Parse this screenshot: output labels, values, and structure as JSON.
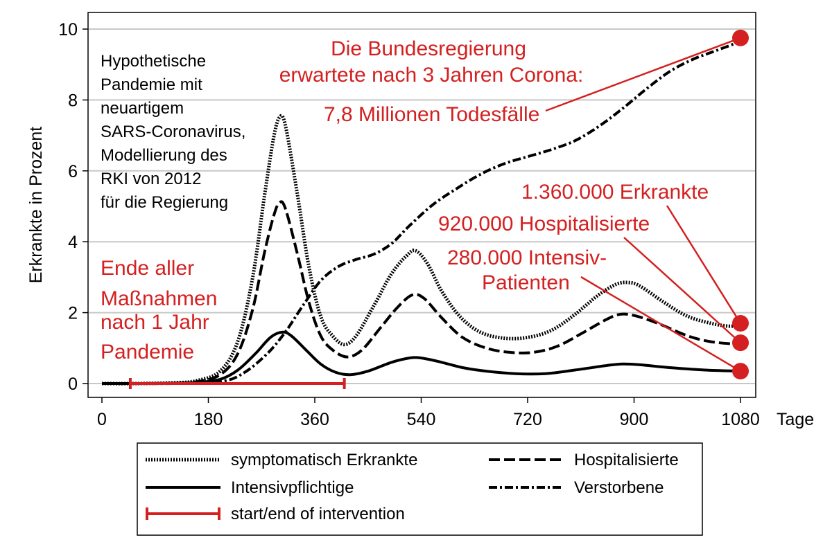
{
  "chart_data": {
    "type": "line",
    "title": "",
    "xlabel": "",
    "x_unit_label": "Tage",
    "ylabel": "Erkrankte in Prozent",
    "xlim": [
      0,
      1080
    ],
    "ylim": [
      0,
      10
    ],
    "x_ticks": [
      "0",
      "180",
      "360",
      "540",
      "720",
      "900",
      "1080"
    ],
    "y_ticks": [
      "0",
      "2",
      "4",
      "6",
      "8",
      "10"
    ],
    "grid": "horizontal",
    "legend_position": "bottom",
    "series": [
      {
        "name": "symptomatisch Erkrankte",
        "style": "dotted",
        "color": "#000000",
        "points": [
          [
            0,
            0
          ],
          [
            60,
            0
          ],
          [
            120,
            0.02
          ],
          [
            160,
            0.08
          ],
          [
            200,
            0.35
          ],
          [
            230,
            1.2
          ],
          [
            255,
            3.0
          ],
          [
            275,
            5.3
          ],
          [
            290,
            6.9
          ],
          [
            300,
            7.5
          ],
          [
            310,
            7.3
          ],
          [
            330,
            5.4
          ],
          [
            350,
            3.3
          ],
          [
            370,
            1.9
          ],
          [
            390,
            1.35
          ],
          [
            410,
            1.1
          ],
          [
            430,
            1.35
          ],
          [
            460,
            2.2
          ],
          [
            490,
            3.1
          ],
          [
            515,
            3.6
          ],
          [
            530,
            3.75
          ],
          [
            550,
            3.4
          ],
          [
            575,
            2.6
          ],
          [
            605,
            1.9
          ],
          [
            640,
            1.45
          ],
          [
            680,
            1.28
          ],
          [
            720,
            1.3
          ],
          [
            760,
            1.5
          ],
          [
            800,
            1.95
          ],
          [
            840,
            2.5
          ],
          [
            870,
            2.8
          ],
          [
            890,
            2.85
          ],
          [
            910,
            2.75
          ],
          [
            950,
            2.3
          ],
          [
            990,
            1.9
          ],
          [
            1030,
            1.7
          ],
          [
            1060,
            1.62
          ],
          [
            1080,
            1.65
          ]
        ]
      },
      {
        "name": "Hospitalisierte",
        "style": "dashed",
        "color": "#000000",
        "points": [
          [
            0,
            0
          ],
          [
            60,
            0
          ],
          [
            120,
            0.01
          ],
          [
            160,
            0.05
          ],
          [
            200,
            0.25
          ],
          [
            230,
            0.85
          ],
          [
            255,
            2.1
          ],
          [
            275,
            3.7
          ],
          [
            290,
            4.7
          ],
          [
            300,
            5.1
          ],
          [
            310,
            4.95
          ],
          [
            330,
            3.7
          ],
          [
            350,
            2.3
          ],
          [
            370,
            1.35
          ],
          [
            390,
            0.95
          ],
          [
            415,
            0.75
          ],
          [
            440,
            0.95
          ],
          [
            470,
            1.55
          ],
          [
            500,
            2.15
          ],
          [
            525,
            2.5
          ],
          [
            545,
            2.4
          ],
          [
            575,
            1.85
          ],
          [
            610,
            1.3
          ],
          [
            650,
            1.0
          ],
          [
            690,
            0.88
          ],
          [
            730,
            0.88
          ],
          [
            770,
            1.05
          ],
          [
            810,
            1.4
          ],
          [
            850,
            1.78
          ],
          [
            875,
            1.95
          ],
          [
            900,
            1.92
          ],
          [
            940,
            1.7
          ],
          [
            990,
            1.35
          ],
          [
            1030,
            1.18
          ],
          [
            1080,
            1.1
          ]
        ]
      },
      {
        "name": "Intensivpflichtige",
        "style": "solid",
        "color": "#000000",
        "points": [
          [
            0,
            0
          ],
          [
            60,
            0
          ],
          [
            120,
            0.01
          ],
          [
            160,
            0.03
          ],
          [
            200,
            0.12
          ],
          [
            230,
            0.38
          ],
          [
            260,
            0.85
          ],
          [
            285,
            1.3
          ],
          [
            305,
            1.45
          ],
          [
            320,
            1.35
          ],
          [
            345,
            0.95
          ],
          [
            370,
            0.55
          ],
          [
            395,
            0.32
          ],
          [
            420,
            0.25
          ],
          [
            450,
            0.35
          ],
          [
            490,
            0.6
          ],
          [
            520,
            0.72
          ],
          [
            540,
            0.72
          ],
          [
            570,
            0.62
          ],
          [
            610,
            0.45
          ],
          [
            650,
            0.35
          ],
          [
            700,
            0.28
          ],
          [
            750,
            0.28
          ],
          [
            800,
            0.38
          ],
          [
            850,
            0.5
          ],
          [
            880,
            0.55
          ],
          [
            910,
            0.53
          ],
          [
            960,
            0.45
          ],
          [
            1020,
            0.38
          ],
          [
            1080,
            0.35
          ]
        ]
      },
      {
        "name": "Verstorbene",
        "style": "dash-dot",
        "color": "#000000",
        "points": [
          [
            0,
            0
          ],
          [
            120,
            0
          ],
          [
            200,
            0.05
          ],
          [
            240,
            0.3
          ],
          [
            280,
            0.85
          ],
          [
            310,
            1.45
          ],
          [
            340,
            2.2
          ],
          [
            370,
            2.9
          ],
          [
            400,
            3.3
          ],
          [
            430,
            3.5
          ],
          [
            460,
            3.65
          ],
          [
            490,
            3.95
          ],
          [
            520,
            4.45
          ],
          [
            560,
            5.05
          ],
          [
            600,
            5.5
          ],
          [
            640,
            5.9
          ],
          [
            680,
            6.2
          ],
          [
            720,
            6.4
          ],
          [
            760,
            6.6
          ],
          [
            800,
            6.85
          ],
          [
            840,
            7.25
          ],
          [
            880,
            7.75
          ],
          [
            920,
            8.3
          ],
          [
            960,
            8.8
          ],
          [
            1000,
            9.15
          ],
          [
            1040,
            9.4
          ],
          [
            1080,
            9.65
          ]
        ]
      }
    ],
    "intervention": {
      "name": "start/end of intervention",
      "start": 48,
      "end": 410,
      "y": 0,
      "color": "#d42020"
    },
    "markers": [
      {
        "x": 1080,
        "y": 9.75,
        "color": "#d42020"
      },
      {
        "x": 1080,
        "y": 1.7,
        "color": "#d42020"
      },
      {
        "x": 1080,
        "y": 1.15,
        "color": "#d42020"
      },
      {
        "x": 1080,
        "y": 0.35,
        "color": "#d42020"
      }
    ],
    "annotations": {
      "hypothetical": [
        "Hypothetische",
        "Pandemie mit",
        "neuartigem",
        "SARS-Coronavirus,",
        "Modellierung des",
        "RKI von 2012",
        "für die Regierung"
      ],
      "end_measures": [
        "Ende aller",
        "Maßnahmen",
        "nach 1 Jahr",
        "Pandemie"
      ],
      "government": [
        "Die Bundesregierung",
        "erwartete nach 3 Jahren Corona:"
      ],
      "deaths": "7,8 Millionen Todesfälle",
      "sick": "1.360.000 Erkrankte",
      "hospitalized": "920.000 Hospitalisierte",
      "icu": [
        "280.000 Intensiv-",
        "Patienten"
      ]
    },
    "colors": {
      "accent": "#d42020",
      "grid": "#c8c8c8",
      "line": "#000000"
    }
  }
}
